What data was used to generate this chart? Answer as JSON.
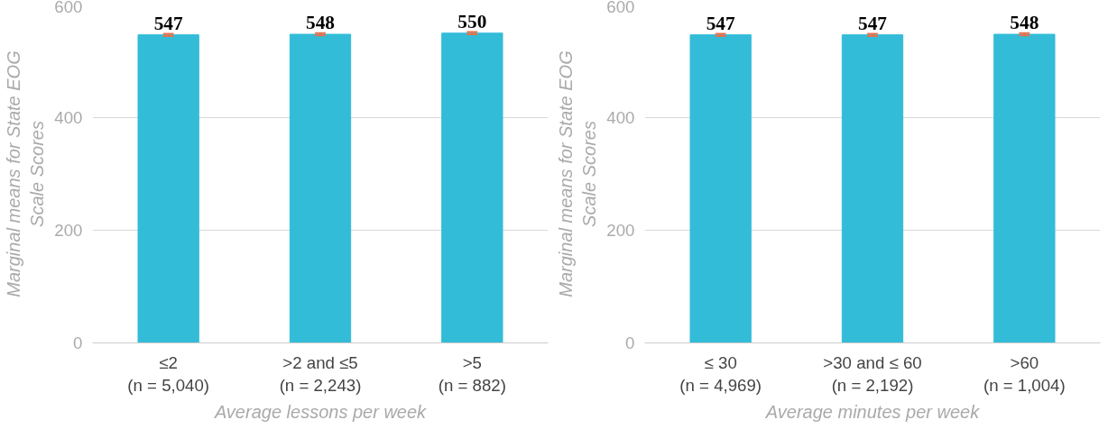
{
  "chart_data": [
    {
      "type": "bar",
      "xlabel": "Average lessons per week",
      "ylabel": "Marginal means for State EOG\nScale Scores",
      "categories": [
        "≤2\n(n = 5,040)",
        ">2 and ≤5\n(n = 2,243)",
        ">5\n(n = 882)"
      ],
      "values": [
        547,
        548,
        550
      ],
      "errors": [
        2,
        2,
        2
      ],
      "color": "#33bcd8",
      "ylim": [
        0,
        600
      ],
      "yticks": [
        0,
        200,
        400,
        600
      ],
      "grid": "y",
      "data_labels": true
    },
    {
      "type": "bar",
      "xlabel": "Average minutes per week",
      "ylabel": "Marginal means for State EOG\nScale Scores",
      "categories": [
        "≤ 30\n(n = 4,969)",
        ">30 and ≤ 60\n(n = 2,192)",
        ">60\n(n = 1,004)"
      ],
      "values": [
        547,
        547,
        548
      ],
      "errors": [
        2,
        2,
        2
      ],
      "color": "#33bcd8",
      "ylim": [
        0,
        600
      ],
      "yticks": [
        0,
        200,
        400,
        600
      ],
      "grid": "y",
      "data_labels": true
    }
  ]
}
